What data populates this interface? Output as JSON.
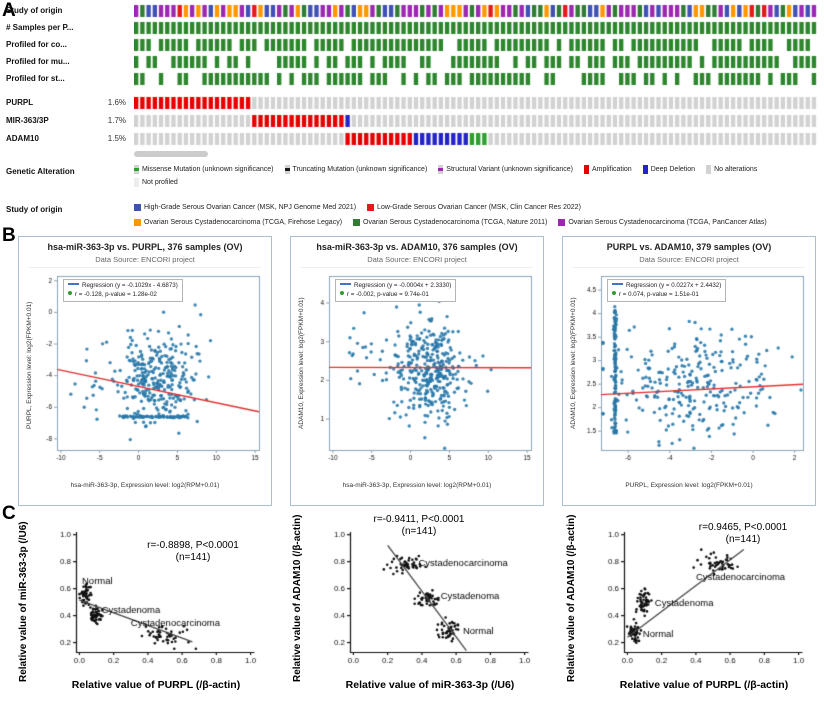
{
  "panels": {
    "a": "A",
    "b": "B",
    "c": "C"
  },
  "chart_data": [
    {
      "type": "oncoprint",
      "columns": 110,
      "tracks": [
        {
          "label": "Study of origin",
          "kind": "categorical",
          "palette": [
            "#9c27b0",
            "#ff9800",
            "#2e7d32",
            "#e31a1c",
            "#3f51b5"
          ],
          "weights": [
            0.38,
            0.2,
            0.22,
            0.07,
            0.13
          ]
        },
        {
          "label": "# Samples per P...",
          "kind": "solid",
          "color": "#2d862d"
        },
        {
          "label": "Profiled for co...",
          "kind": "sparse",
          "color": "#2d862d",
          "fill_prob": 0.78
        },
        {
          "label": "Profiled for mu...",
          "kind": "sparse",
          "color": "#2d862d",
          "fill_prob": 0.72
        },
        {
          "label": "Profiled for st...",
          "kind": "sparse",
          "color": "#2d862d",
          "fill_prob": 0.7
        },
        {
          "label": "PURPL",
          "pct": "1.6%",
          "kind": "segments",
          "segments": [
            [
              "#e60000",
              0.17
            ],
            [
              "#d2d2d2",
              0.83
            ]
          ]
        },
        {
          "label": "MIR-363/3P",
          "pct": "1.7%",
          "kind": "segments",
          "segments": [
            [
              "#d2d2d2",
              0.17
            ],
            [
              "#e60000",
              0.14
            ],
            [
              "#2323c9",
              0.01
            ],
            [
              "#d2d2d2",
              0.68
            ]
          ]
        },
        {
          "label": "ADAM10",
          "pct": "1.5%",
          "kind": "segments",
          "segments": [
            [
              "#d2d2d2",
              0.31
            ],
            [
              "#e60000",
              0.1
            ],
            [
              "#2323c9",
              0.085
            ],
            [
              "#2ca02c",
              0.02
            ],
            [
              "#d2d2d2",
              0.485
            ]
          ]
        }
      ],
      "alteration_legend": {
        "title": "Genetic Alteration",
        "items": [
          {
            "label": "Missense Mutation (unknown significance)",
            "bg": "#d2d2d2",
            "center": "#2ca02c",
            "row": 0
          },
          {
            "label": "Truncating Mutation (unknown significance)",
            "bg": "#d2d2d2",
            "center": "#1a1a1a",
            "row": 0
          },
          {
            "label": "Structural Variant (unknown significance)",
            "bg": "#d2d2d2",
            "center": "#9c27b0",
            "row": 0
          },
          {
            "label": "Amplification",
            "bg": "#e60000",
            "row": 0
          },
          {
            "label": "Deep Deletion",
            "bg": "#2323c9",
            "row": 0
          },
          {
            "label": "No alterations",
            "bg": "#d2d2d2",
            "row": 0
          },
          {
            "label": "Not profiled",
            "bg": "#ededed",
            "row": 1
          }
        ]
      },
      "study_legend": {
        "title": "Study of origin",
        "items": [
          {
            "label": "High-Grade Serous Ovarian Cancer (MSK, NPJ Genome Med 2021)",
            "color": "#3f51b5",
            "row": 0
          },
          {
            "label": "Low-Grade Serous Ovarian Cancer (MSK, Clin Cancer Res 2022)",
            "color": "#e31a1c",
            "row": 0
          },
          {
            "label": "Ovarian Serous Cystadenocarcinoma (TCGA, Firehose Legacy)",
            "color": "#ff9800",
            "row": 1
          },
          {
            "label": "Ovarian Serous Cystadenocarcinoma (TCGA, Nature 2011)",
            "color": "#2e7d32",
            "row": 1
          },
          {
            "label": "Ovarian Serous Cystadenocarcinoma (TCGA, PanCancer Atlas)",
            "color": "#9c27b0",
            "row": 1
          }
        ]
      }
    },
    {
      "type": "scatter",
      "title": "hsa-miR-363-3p vs. PURPL, 376 samples (OV)",
      "subtitle": "Data Source: ENCORI project",
      "legend": {
        "regression": "Regression (y = -0.1029x - 4.6873)",
        "correlation": "r = -0.128, p-value = 1.28e-02"
      },
      "xlabel": "hsa-miR-363-3p, Expression level: log2(RPM+0.01)",
      "ylabel": "PURPL, Expression level: log2(FPKM+0.01)",
      "n": 376,
      "xlim": [
        -10.5,
        15.5
      ],
      "ylim": [
        -8.7,
        2.3
      ],
      "xticks": [
        -10,
        -5,
        0,
        5,
        10,
        15
      ],
      "yticks": [
        -8,
        -6,
        -4,
        -2,
        0,
        2
      ],
      "point_color": "#2878a8",
      "line_color": "#e03030",
      "regression": {
        "slope": -0.1029,
        "intercept": -4.6873
      },
      "clusters": [
        {
          "n": 290,
          "cx": 2.3,
          "cy": -4.2,
          "sx": 2.4,
          "sy": 1.35
        },
        {
          "n": 70,
          "cx": 2.0,
          "cy": -6.6,
          "sx": 4.5,
          "sy": 0.03,
          "shape": "hline"
        },
        {
          "n": 16,
          "cx": -6.5,
          "cy": -4.8,
          "sx": 1.2,
          "sy": 1.2
        }
      ]
    },
    {
      "type": "scatter",
      "title": "hsa-miR-363-3p vs. ADAM10, 376 samples (OV)",
      "subtitle": "Data Source: ENCORI project",
      "legend": {
        "regression": "Regression (y = -0.0004x + 2.3330)",
        "correlation": "r = -0.002, p-value = 9.74e-01"
      },
      "xlabel": "hsa-miR-363-3p, Expression level: log2(RPM+0.01)",
      "ylabel": "ADAM10, Expression level: log2(FPKM+0.01)",
      "n": 376,
      "xlim": [
        -10.5,
        15.5
      ],
      "ylim": [
        0.2,
        4.7
      ],
      "xticks": [
        -10,
        -5,
        0,
        5,
        10,
        15
      ],
      "yticks": [
        1,
        2,
        3,
        4
      ],
      "point_color": "#2878a8",
      "line_color": "#e03030",
      "regression": {
        "slope": -0.0004,
        "intercept": 2.333
      },
      "clusters": [
        {
          "n": 360,
          "cx": 2.4,
          "cy": 2.3,
          "sx": 2.4,
          "sy": 0.62
        },
        {
          "n": 16,
          "cx": -6.5,
          "cy": 2.3,
          "sx": 1.2,
          "sy": 0.7
        }
      ]
    },
    {
      "type": "scatter",
      "title": "PURPL vs. ADAM10, 379 samples (OV)",
      "subtitle": "Data Source: ENCORI project",
      "legend": {
        "regression": "Regression (y = 0.0227x + 2.4432)",
        "correlation": "r = 0.074, p-value = 1.51e-01"
      },
      "xlabel": "PURPL, Expression level: log2(FPKM+0.01)",
      "ylabel": "ADAM10, Expression level: log2(FPKM+0.01)",
      "n": 379,
      "xlim": [
        -7.3,
        2.4
      ],
      "ylim": [
        1.1,
        4.8
      ],
      "xticks": [
        -6,
        -4,
        -2,
        0,
        2
      ],
      "yticks": [
        1.5,
        2,
        2.5,
        3,
        3.5,
        4,
        4.5
      ],
      "point_color": "#2878a8",
      "line_color": "#e03030",
      "regression": {
        "slope": 0.0227,
        "intercept": 2.4432
      },
      "clusters": [
        {
          "n": 115,
          "cx": -6.62,
          "cy": 2.8,
          "sx": 0.03,
          "sy": 1.35,
          "shape": "vline"
        },
        {
          "n": 264,
          "cx": -3.0,
          "cy": 2.45,
          "sx": 1.9,
          "sy": 0.6
        }
      ]
    },
    {
      "type": "scatter",
      "xlabel": "Relative value of PURPL (/β-actin)",
      "ylabel": "Relative value of miR-363-3p (/U6)",
      "annotation_r": "r=-0.8898, P<0.0001",
      "annotation_n": "(n=141)",
      "n": 141,
      "xlim": [
        -0.02,
        1.02
      ],
      "ylim": [
        0.13,
        1.02
      ],
      "xticks": [
        0,
        0.2,
        0.4,
        0.6,
        0.8,
        1
      ],
      "yticks": [
        0.2,
        0.4,
        0.6,
        0.8,
        1
      ],
      "point_color": "#111111",
      "line": {
        "x1": 0,
        "y1": 0.515,
        "x2": 0.66,
        "y2": 0.205,
        "color": "#444444"
      },
      "clusters": [
        {
          "label": "Normal",
          "n": 47,
          "cx": 0.035,
          "cy": 0.55,
          "sx": 0.018,
          "sy": 0.045,
          "label_at": [
            0.015,
            0.655
          ]
        },
        {
          "label": "Cystadenoma",
          "n": 47,
          "cx": 0.09,
          "cy": 0.4,
          "sx": 0.02,
          "sy": 0.03,
          "label_at": [
            0.13,
            0.44
          ]
        },
        {
          "label": "Cystadenocarcinoma",
          "n": 47,
          "cx": 0.5,
          "cy": 0.25,
          "sx": 0.07,
          "sy": 0.03,
          "label_at": [
            0.3,
            0.34
          ]
        }
      ]
    },
    {
      "type": "scatter",
      "xlabel": "Relative value of miR-363-3p (/U6)",
      "ylabel": "Relative value of ADAM10 (/β-actin)",
      "annotation_r": "r=-0.9411, P<0.0001",
      "annotation_n": "(n=141)",
      "n": 141,
      "xlim": [
        -0.02,
        1.02
      ],
      "ylim": [
        0.13,
        1.02
      ],
      "xticks": [
        0,
        0.2,
        0.4,
        0.6,
        0.8,
        1
      ],
      "yticks": [
        0.2,
        0.4,
        0.6,
        0.8,
        1
      ],
      "point_color": "#111111",
      "line": {
        "x1": 0.2,
        "y1": 0.92,
        "x2": 0.66,
        "y2": 0.14,
        "color": "#444444"
      },
      "clusters": [
        {
          "label": "Cystadenocarcinoma",
          "n": 47,
          "cx": 0.3,
          "cy": 0.78,
          "sx": 0.05,
          "sy": 0.03,
          "label_at": [
            0.38,
            0.79
          ]
        },
        {
          "label": "Cystadenoma",
          "n": 47,
          "cx": 0.43,
          "cy": 0.52,
          "sx": 0.03,
          "sy": 0.03,
          "label_at": [
            0.51,
            0.54
          ]
        },
        {
          "label": "Normal",
          "n": 47,
          "cx": 0.56,
          "cy": 0.3,
          "sx": 0.04,
          "sy": 0.04,
          "label_at": [
            0.64,
            0.28
          ]
        }
      ]
    },
    {
      "type": "scatter",
      "xlabel": "Relative value of PURPL (/β-actin)",
      "ylabel": "Relative value of ADAM10 (/β-actin)",
      "annotation_r": "r=0.9465, P<0.0001",
      "annotation_n": "(n=141)",
      "n": 141,
      "xlim": [
        -0.02,
        1.02
      ],
      "ylim": [
        0.13,
        1.02
      ],
      "xticks": [
        0,
        0.2,
        0.4,
        0.6,
        0.8,
        1
      ],
      "yticks": [
        0.2,
        0.4,
        0.6,
        0.8,
        1
      ],
      "point_color": "#111111",
      "line": {
        "x1": 0,
        "y1": 0.24,
        "x2": 0.68,
        "y2": 0.89,
        "color": "#444444"
      },
      "clusters": [
        {
          "label": "Normal",
          "n": 47,
          "cx": 0.04,
          "cy": 0.27,
          "sx": 0.016,
          "sy": 0.03,
          "label_at": [
            0.09,
            0.26
          ]
        },
        {
          "label": "Cystadenoma",
          "n": 47,
          "cx": 0.1,
          "cy": 0.5,
          "sx": 0.02,
          "sy": 0.04,
          "label_at": [
            0.16,
            0.49
          ]
        },
        {
          "label": "Cystadenocarcinoma",
          "n": 47,
          "cx": 0.55,
          "cy": 0.78,
          "sx": 0.06,
          "sy": 0.03,
          "label_at": [
            0.4,
            0.685
          ]
        }
      ]
    }
  ]
}
